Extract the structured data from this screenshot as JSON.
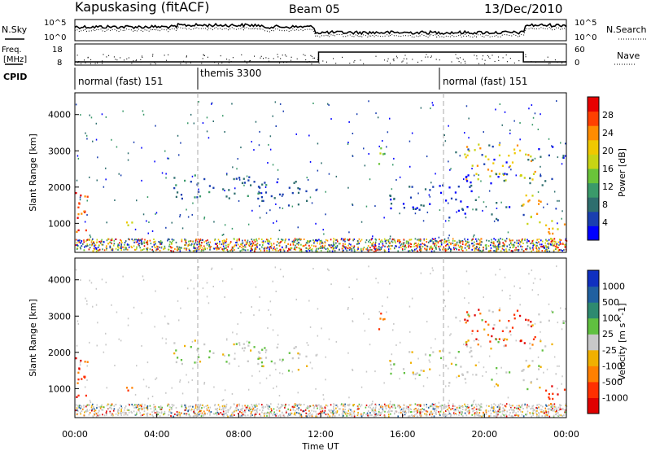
{
  "header": {
    "station": "Kapuskasing (fitACF)",
    "beam": "Beam 05",
    "date": "13/Dec/2010"
  },
  "panels": {
    "nsky": {
      "label": "N.Sky",
      "tick_top": "10^5",
      "tick_bottom": "10^0",
      "right_ticks": [
        "10^5",
        "10^0"
      ],
      "right_label": "N.Search"
    },
    "freq": {
      "label_line1": "Freq.",
      "label_line2": "[MHz]",
      "ticks": [
        "18",
        "8"
      ],
      "right_ticks": [
        "60",
        "0"
      ],
      "right_label": "Nave"
    },
    "cpid": {
      "label": "CPID",
      "segments": [
        {
          "label": "normal (fast) 151",
          "start_h": 0
        },
        {
          "label": "themis 3300",
          "start_h": 6
        },
        {
          "label": "normal (fast) 151",
          "start_h": 18
        }
      ]
    }
  },
  "chart_data": [
    {
      "type": "heatmap",
      "name": "power",
      "ylabel": "Slant Range [km]",
      "yticks": [
        1000,
        2000,
        3000,
        4000
      ],
      "ylim": [
        200,
        4600
      ],
      "colorbar": {
        "label": "Power [dB]",
        "ticks": [
          "4",
          "8",
          "12",
          "16",
          "20",
          "24",
          "28"
        ],
        "range": [
          0,
          30
        ],
        "colors": [
          "#0000ff",
          "#1a3fb0",
          "#2e6e6e",
          "#3a9a6a",
          "#6ac43a",
          "#c8d414",
          "#f0c800",
          "#ff8c00",
          "#ff4000",
          "#e80000"
        ]
      }
    },
    {
      "type": "heatmap",
      "name": "velocity",
      "ylabel": "Slant Range [km]",
      "xlabel": "Time UT",
      "yticks": [
        1000,
        2000,
        3000,
        4000
      ],
      "ylim": [
        200,
        4600
      ],
      "xticks": [
        "00:00",
        "04:00",
        "08:00",
        "12:00",
        "16:00",
        "20:00",
        "00:00"
      ],
      "xlim_hours": [
        0,
        24
      ],
      "colorbar": {
        "label": "Velocity [m s^-1]",
        "ticks": [
          "1000",
          "500",
          "100",
          "25",
          "-25",
          "-100",
          "-500",
          "-1000"
        ],
        "colors": [
          "#1030c0",
          "#2060a0",
          "#2e8a70",
          "#60c040",
          "#c8c8c8",
          "#f0b000",
          "#ff8000",
          "#ff3000",
          "#e00000"
        ]
      }
    }
  ],
  "colors": {
    "nsky_line": "#000000",
    "ground": "#8a7a20",
    "velocity_grey": "#c8c8c8",
    "power_blue": "#1a3fd0"
  }
}
